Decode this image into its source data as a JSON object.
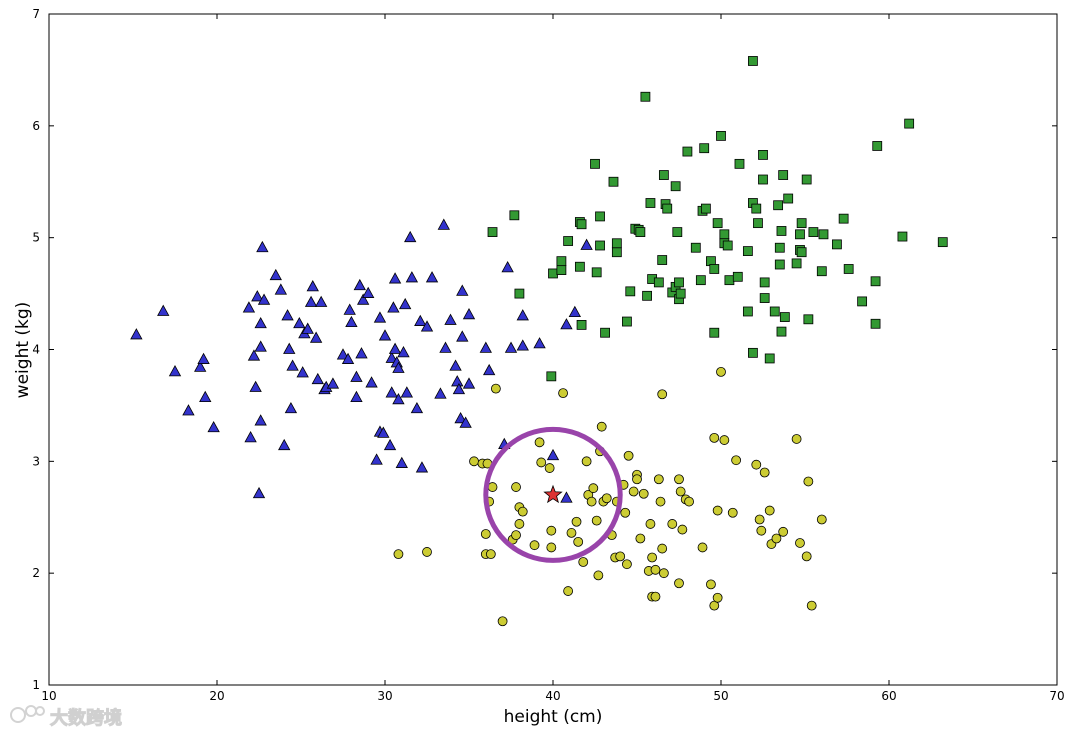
{
  "chart_data": {
    "type": "scatter",
    "title": "",
    "xlabel": "height (cm)",
    "ylabel": "weight (kg)",
    "xlim": [
      10,
      70
    ],
    "ylim": [
      1,
      7
    ],
    "xticks": [
      "10",
      "20",
      "30",
      "40",
      "50",
      "60",
      "70"
    ],
    "yticks": [
      "1",
      "2",
      "3",
      "4",
      "5",
      "6",
      "7"
    ],
    "grid": false,
    "legend": "none",
    "series": [
      {
        "marker": "triangle",
        "color": "#3333cc",
        "points": [
          [
            15.2,
            4.13
          ],
          [
            16.8,
            4.34
          ],
          [
            17.5,
            3.8
          ],
          [
            18.3,
            3.45
          ],
          [
            19.0,
            3.84
          ],
          [
            19.2,
            3.91
          ],
          [
            19.3,
            3.57
          ],
          [
            19.8,
            3.3
          ],
          [
            21.9,
            4.37
          ],
          [
            22.0,
            3.21
          ],
          [
            22.2,
            3.94
          ],
          [
            22.3,
            3.66
          ],
          [
            22.4,
            4.47
          ],
          [
            22.5,
            2.71
          ],
          [
            22.6,
            3.36
          ],
          [
            22.6,
            4.02
          ],
          [
            22.6,
            4.23
          ],
          [
            22.7,
            4.91
          ],
          [
            22.8,
            4.44
          ],
          [
            23.5,
            4.66
          ],
          [
            23.8,
            4.53
          ],
          [
            24.0,
            3.14
          ],
          [
            24.2,
            4.3
          ],
          [
            24.3,
            4.0
          ],
          [
            24.4,
            3.47
          ],
          [
            24.5,
            3.85
          ],
          [
            24.9,
            4.23
          ],
          [
            25.1,
            3.79
          ],
          [
            25.2,
            4.14
          ],
          [
            25.4,
            4.18
          ],
          [
            25.6,
            4.42
          ],
          [
            25.7,
            4.56
          ],
          [
            25.9,
            4.1
          ],
          [
            26.0,
            3.73
          ],
          [
            26.2,
            4.42
          ],
          [
            26.4,
            3.64
          ],
          [
            26.5,
            3.66
          ],
          [
            26.9,
            3.69
          ],
          [
            27.5,
            3.95
          ],
          [
            27.8,
            3.91
          ],
          [
            27.9,
            4.35
          ],
          [
            28.0,
            4.24
          ],
          [
            28.3,
            3.75
          ],
          [
            28.3,
            3.57
          ],
          [
            28.5,
            4.57
          ],
          [
            28.6,
            3.96
          ],
          [
            28.7,
            4.44
          ],
          [
            29.0,
            4.5
          ],
          [
            29.2,
            3.7
          ],
          [
            29.5,
            3.01
          ],
          [
            29.7,
            4.28
          ],
          [
            29.7,
            3.26
          ],
          [
            29.9,
            3.25
          ],
          [
            30.0,
            4.12
          ],
          [
            30.3,
            3.14
          ],
          [
            30.4,
            3.92
          ],
          [
            30.4,
            3.61
          ],
          [
            30.5,
            4.37
          ],
          [
            30.6,
            4.63
          ],
          [
            30.6,
            4.0
          ],
          [
            30.7,
            3.88
          ],
          [
            30.8,
            3.83
          ],
          [
            30.8,
            3.55
          ],
          [
            31.0,
            2.98
          ],
          [
            31.1,
            3.97
          ],
          [
            31.2,
            4.4
          ],
          [
            31.3,
            3.61
          ],
          [
            31.5,
            5.0
          ],
          [
            31.6,
            4.64
          ],
          [
            31.9,
            3.47
          ],
          [
            32.1,
            4.25
          ],
          [
            32.2,
            2.94
          ],
          [
            32.5,
            4.2
          ],
          [
            32.8,
            4.64
          ],
          [
            33.3,
            3.6
          ],
          [
            33.5,
            5.11
          ],
          [
            33.6,
            4.01
          ],
          [
            33.9,
            4.26
          ],
          [
            34.2,
            3.85
          ],
          [
            34.3,
            3.71
          ],
          [
            34.4,
            3.64
          ],
          [
            34.5,
            3.38
          ],
          [
            34.6,
            4.52
          ],
          [
            34.6,
            4.11
          ],
          [
            34.8,
            3.34
          ],
          [
            35.0,
            3.69
          ],
          [
            35.0,
            4.31
          ],
          [
            36.0,
            4.01
          ],
          [
            36.2,
            3.81
          ],
          [
            37.1,
            3.15
          ],
          [
            37.3,
            4.73
          ],
          [
            37.5,
            4.01
          ],
          [
            38.2,
            4.3
          ],
          [
            38.2,
            4.03
          ],
          [
            39.2,
            4.05
          ],
          [
            40.8,
            4.22
          ],
          [
            41.3,
            4.33
          ],
          [
            42.0,
            4.93
          ],
          [
            40.0,
            3.05
          ],
          [
            40.8,
            2.67
          ]
        ]
      },
      {
        "marker": "square",
        "color": "#339933",
        "points": [
          [
            36.4,
            5.05
          ],
          [
            37.7,
            5.2
          ],
          [
            38.0,
            4.5
          ],
          [
            39.9,
            3.76
          ],
          [
            40.0,
            4.68
          ],
          [
            40.5,
            4.71
          ],
          [
            40.5,
            4.79
          ],
          [
            40.9,
            4.97
          ],
          [
            41.6,
            4.74
          ],
          [
            41.6,
            5.14
          ],
          [
            41.7,
            5.12
          ],
          [
            41.7,
            4.22
          ],
          [
            42.5,
            5.66
          ],
          [
            42.6,
            4.69
          ],
          [
            42.8,
            4.93
          ],
          [
            42.8,
            5.19
          ],
          [
            43.1,
            4.15
          ],
          [
            43.6,
            5.5
          ],
          [
            43.8,
            4.87
          ],
          [
            43.8,
            4.95
          ],
          [
            44.4,
            4.25
          ],
          [
            44.6,
            4.52
          ],
          [
            44.9,
            5.08
          ],
          [
            45.1,
            5.07
          ],
          [
            45.2,
            5.05
          ],
          [
            45.5,
            6.26
          ],
          [
            45.6,
            4.48
          ],
          [
            45.8,
            5.31
          ],
          [
            45.9,
            4.63
          ],
          [
            46.3,
            4.6
          ],
          [
            46.5,
            4.8
          ],
          [
            46.6,
            5.56
          ],
          [
            46.7,
            5.3
          ],
          [
            46.8,
            5.26
          ],
          [
            47.1,
            4.51
          ],
          [
            47.3,
            5.46
          ],
          [
            47.3,
            4.56
          ],
          [
            47.4,
            5.05
          ],
          [
            47.5,
            4.6
          ],
          [
            47.5,
            4.45
          ],
          [
            47.6,
            4.5
          ],
          [
            48.0,
            5.77
          ],
          [
            48.5,
            4.91
          ],
          [
            48.8,
            4.62
          ],
          [
            48.9,
            5.24
          ],
          [
            49.0,
            5.8
          ],
          [
            49.1,
            5.26
          ],
          [
            49.4,
            4.79
          ],
          [
            49.6,
            4.72
          ],
          [
            49.6,
            4.15
          ],
          [
            49.8,
            5.13
          ],
          [
            50.0,
            5.91
          ],
          [
            50.2,
            5.03
          ],
          [
            50.2,
            4.95
          ],
          [
            50.4,
            4.93
          ],
          [
            50.5,
            4.62
          ],
          [
            51.0,
            4.65
          ],
          [
            51.1,
            5.66
          ],
          [
            51.6,
            4.88
          ],
          [
            51.6,
            4.34
          ],
          [
            51.9,
            3.97
          ],
          [
            51.9,
            6.58
          ],
          [
            51.9,
            5.31
          ],
          [
            52.1,
            5.26
          ],
          [
            52.2,
            5.13
          ],
          [
            52.5,
            5.74
          ],
          [
            52.5,
            5.52
          ],
          [
            52.6,
            4.46
          ],
          [
            52.6,
            4.6
          ],
          [
            52.9,
            3.92
          ],
          [
            53.2,
            4.34
          ],
          [
            53.4,
            5.29
          ],
          [
            53.5,
            4.76
          ],
          [
            53.5,
            4.91
          ],
          [
            53.6,
            4.16
          ],
          [
            53.6,
            5.06
          ],
          [
            53.7,
            5.56
          ],
          [
            53.8,
            4.29
          ],
          [
            54.0,
            5.35
          ],
          [
            54.5,
            4.77
          ],
          [
            54.7,
            4.89
          ],
          [
            54.7,
            5.03
          ],
          [
            54.8,
            4.87
          ],
          [
            54.8,
            5.13
          ],
          [
            55.1,
            5.52
          ],
          [
            55.2,
            4.27
          ],
          [
            55.5,
            5.05
          ],
          [
            56.0,
            4.7
          ],
          [
            56.1,
            5.03
          ],
          [
            56.9,
            4.94
          ],
          [
            57.3,
            5.17
          ],
          [
            57.6,
            4.72
          ],
          [
            58.4,
            4.43
          ],
          [
            59.2,
            4.61
          ],
          [
            59.2,
            4.23
          ],
          [
            59.3,
            5.82
          ],
          [
            60.8,
            5.01
          ],
          [
            61.2,
            6.02
          ],
          [
            63.2,
            4.96
          ]
        ]
      },
      {
        "marker": "circle",
        "color": "#cccc33",
        "points": [
          [
            30.8,
            2.17
          ],
          [
            32.5,
            2.19
          ],
          [
            35.3,
            3.0
          ],
          [
            35.8,
            2.98
          ],
          [
            36.0,
            2.17
          ],
          [
            36.0,
            2.35
          ],
          [
            36.1,
            2.98
          ],
          [
            36.2,
            2.64
          ],
          [
            36.3,
            2.17
          ],
          [
            36.4,
            2.77
          ],
          [
            36.6,
            3.65
          ],
          [
            37.0,
            1.57
          ],
          [
            37.6,
            2.3
          ],
          [
            37.8,
            2.77
          ],
          [
            37.8,
            2.34
          ],
          [
            38.0,
            2.44
          ],
          [
            38.0,
            2.59
          ],
          [
            38.2,
            2.55
          ],
          [
            38.9,
            2.25
          ],
          [
            39.2,
            3.17
          ],
          [
            39.3,
            2.99
          ],
          [
            39.8,
            2.94
          ],
          [
            39.9,
            2.38
          ],
          [
            39.9,
            2.23
          ],
          [
            40.6,
            3.61
          ],
          [
            40.9,
            1.84
          ],
          [
            41.1,
            2.36
          ],
          [
            41.4,
            2.46
          ],
          [
            41.5,
            2.28
          ],
          [
            41.8,
            2.1
          ],
          [
            42.0,
            3.0
          ],
          [
            42.1,
            2.7
          ],
          [
            42.3,
            2.64
          ],
          [
            42.4,
            2.76
          ],
          [
            42.6,
            2.47
          ],
          [
            42.7,
            1.98
          ],
          [
            42.8,
            3.09
          ],
          [
            42.9,
            3.31
          ],
          [
            43.0,
            2.64
          ],
          [
            43.2,
            2.67
          ],
          [
            43.5,
            2.34
          ],
          [
            43.7,
            2.14
          ],
          [
            43.8,
            2.64
          ],
          [
            44.0,
            2.15
          ],
          [
            44.2,
            2.79
          ],
          [
            44.3,
            2.54
          ],
          [
            44.4,
            2.08
          ],
          [
            44.5,
            3.05
          ],
          [
            44.8,
            2.73
          ],
          [
            45.0,
            2.88
          ],
          [
            45.0,
            2.84
          ],
          [
            45.2,
            2.31
          ],
          [
            45.4,
            2.71
          ],
          [
            45.7,
            2.02
          ],
          [
            45.8,
            2.44
          ],
          [
            45.9,
            2.14
          ],
          [
            45.9,
            1.79
          ],
          [
            46.1,
            2.03
          ],
          [
            46.1,
            1.79
          ],
          [
            46.3,
            2.84
          ],
          [
            46.4,
            2.64
          ],
          [
            46.5,
            3.6
          ],
          [
            46.5,
            2.22
          ],
          [
            46.6,
            2.0
          ],
          [
            47.1,
            2.44
          ],
          [
            47.5,
            2.84
          ],
          [
            47.5,
            1.91
          ],
          [
            47.6,
            2.73
          ],
          [
            47.7,
            2.39
          ],
          [
            47.9,
            2.66
          ],
          [
            48.1,
            2.64
          ],
          [
            48.9,
            2.23
          ],
          [
            49.4,
            1.9
          ],
          [
            49.6,
            3.21
          ],
          [
            49.6,
            1.71
          ],
          [
            49.8,
            1.78
          ],
          [
            49.8,
            2.56
          ],
          [
            50.2,
            3.19
          ],
          [
            50.0,
            3.8
          ],
          [
            50.7,
            2.54
          ],
          [
            50.9,
            3.01
          ],
          [
            52.1,
            2.97
          ],
          [
            52.3,
            2.48
          ],
          [
            52.4,
            2.38
          ],
          [
            52.6,
            2.9
          ],
          [
            52.9,
            2.56
          ],
          [
            53.0,
            2.26
          ],
          [
            53.3,
            2.31
          ],
          [
            53.7,
            2.37
          ],
          [
            54.5,
            3.2
          ],
          [
            54.7,
            2.27
          ],
          [
            55.1,
            2.15
          ],
          [
            55.2,
            2.82
          ],
          [
            55.4,
            1.71
          ],
          [
            56.0,
            2.48
          ]
        ]
      }
    ],
    "annotations": [
      {
        "type": "star",
        "x": 40.0,
        "y": 2.7,
        "color": "#dd3333"
      },
      {
        "type": "circle",
        "cx": 40.0,
        "cy": 2.7,
        "r": 4.0,
        "color": "#9944aa"
      }
    ]
  }
}
